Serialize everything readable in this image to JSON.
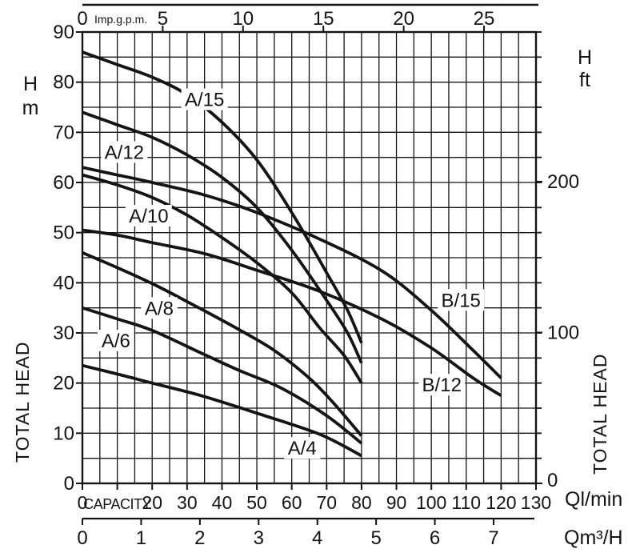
{
  "chart_data": {
    "type": "line",
    "description": "Pump total head vs capacity performance curves",
    "colors": {
      "ink": "#141414",
      "background": "#ffffff"
    },
    "grid": {
      "x_every_lmin": 5,
      "y_every_m": 5,
      "on": true
    },
    "axes": {
      "top": {
        "unit": "Imp.g.p.m.",
        "ticks": [
          0,
          5,
          10,
          15,
          20,
          25
        ],
        "range": [
          0,
          28.3
        ]
      },
      "left": {
        "symbol": "H",
        "unit": "m",
        "title": "TOTAL HEAD",
        "ticks": [
          0,
          10,
          20,
          30,
          40,
          50,
          60,
          70,
          80,
          90
        ],
        "range": [
          0,
          90
        ]
      },
      "right": {
        "symbol": "H",
        "unit": "ft",
        "title": "TOTAL HEAD",
        "labeled_ticks": [
          0,
          100,
          200
        ],
        "minor_tick_every_m": 5
      },
      "bottom": {
        "unit": "Ql/min",
        "word_label": "CAPACITY",
        "ticks": [
          0,
          10,
          20,
          30,
          40,
          50,
          60,
          70,
          80,
          90,
          100,
          110,
          120,
          130
        ],
        "tick_labels": [
          "0",
          "CAPACITY",
          "20",
          "30",
          "40",
          "50",
          "60",
          "70",
          "80",
          "90",
          "100",
          "110",
          "120",
          "130"
        ],
        "range": [
          0,
          130
        ]
      },
      "bottom2": {
        "unit": "Qm³/H",
        "ticks": [
          0,
          1,
          2,
          3,
          4,
          5,
          6,
          7
        ],
        "range": [
          0,
          7.7
        ]
      }
    },
    "series": [
      {
        "name": "A/15",
        "label_at": [
          35,
          76.5
        ],
        "points": [
          [
            0,
            86
          ],
          [
            10,
            83.5
          ],
          [
            20,
            81
          ],
          [
            30,
            77.5
          ],
          [
            40,
            72
          ],
          [
            50,
            64.5
          ],
          [
            60,
            54
          ],
          [
            70,
            42
          ],
          [
            76,
            34.5
          ],
          [
            80,
            28
          ]
        ]
      },
      {
        "name": "A/12",
        "label_at": [
          12,
          66
        ],
        "points": [
          [
            0,
            74
          ],
          [
            10,
            71.5
          ],
          [
            20,
            69
          ],
          [
            30,
            65.5
          ],
          [
            40,
            61
          ],
          [
            50,
            55
          ],
          [
            60,
            46.5
          ],
          [
            70,
            36.5
          ],
          [
            76,
            30
          ],
          [
            80,
            24
          ]
        ]
      },
      {
        "name": "A/10",
        "label_at": [
          19,
          53.3
        ],
        "points": [
          [
            0,
            61.5
          ],
          [
            10,
            59.5
          ],
          [
            20,
            57
          ],
          [
            30,
            53.5
          ],
          [
            40,
            49
          ],
          [
            50,
            44
          ],
          [
            60,
            38
          ],
          [
            68,
            31
          ],
          [
            75,
            25.5
          ],
          [
            80,
            20
          ]
        ]
      },
      {
        "name": "A/8",
        "label_at": [
          22,
          34.9
        ],
        "points": [
          [
            0,
            46
          ],
          [
            10,
            43
          ],
          [
            21,
            39.5
          ],
          [
            32,
            35.5
          ],
          [
            44,
            31
          ],
          [
            55,
            26.5
          ],
          [
            65,
            21
          ],
          [
            72,
            16
          ],
          [
            80,
            9.5
          ]
        ]
      },
      {
        "name": "A/6",
        "label_at": [
          9.6,
          28.4
        ],
        "points": [
          [
            0,
            35
          ],
          [
            10,
            32.8
          ],
          [
            20,
            30.5
          ],
          [
            34,
            26
          ],
          [
            45,
            22.5
          ],
          [
            57,
            19
          ],
          [
            70,
            13.5
          ],
          [
            80,
            8
          ]
        ]
      },
      {
        "name": "A/4",
        "label_at": [
          63,
          7
        ],
        "points": [
          [
            0,
            23.5
          ],
          [
            10,
            21.8
          ],
          [
            20,
            20
          ],
          [
            34,
            17.5
          ],
          [
            50,
            14
          ],
          [
            68,
            9.8
          ],
          [
            80,
            5.5
          ]
        ]
      },
      {
        "name": "B/15",
        "label_at": [
          108.5,
          36.5
        ],
        "points": [
          [
            0,
            63
          ],
          [
            10,
            61.5
          ],
          [
            20,
            60
          ],
          [
            35,
            57.5
          ],
          [
            50,
            54
          ],
          [
            68,
            48.7
          ],
          [
            86,
            42.3
          ],
          [
            100,
            34.5
          ],
          [
            112,
            26.5
          ],
          [
            120,
            21
          ]
        ]
      },
      {
        "name": "B/12",
        "label_at": [
          103,
          19.6
        ],
        "points": [
          [
            0,
            50.5
          ],
          [
            10,
            49.5
          ],
          [
            20,
            48
          ],
          [
            35,
            45.8
          ],
          [
            50,
            42.5
          ],
          [
            68,
            38.3
          ],
          [
            86,
            32.7
          ],
          [
            100,
            27
          ],
          [
            112,
            21
          ],
          [
            120,
            17.5
          ]
        ]
      }
    ]
  }
}
